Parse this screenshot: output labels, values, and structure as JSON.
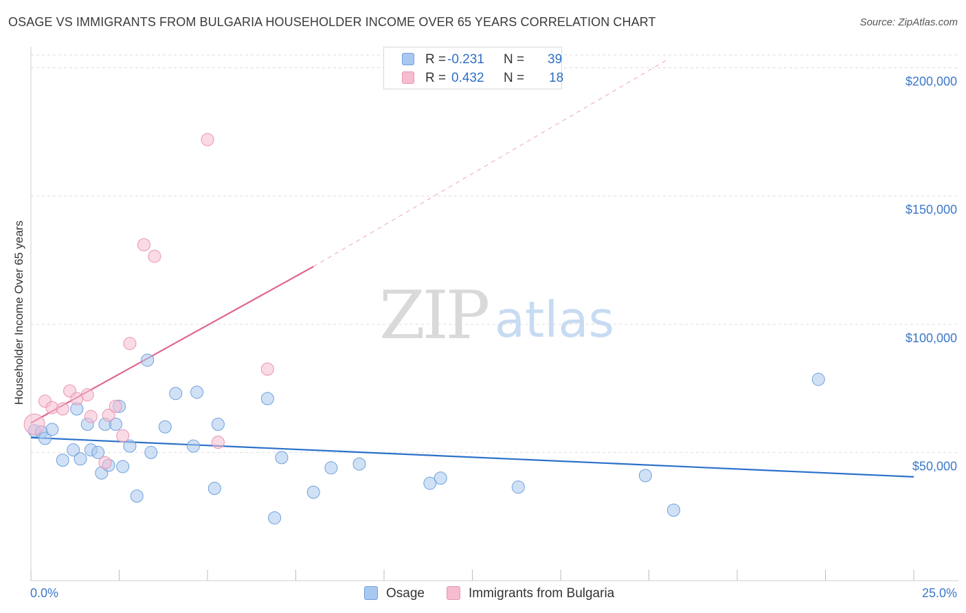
{
  "header": {
    "title": "OSAGE VS IMMIGRANTS FROM BULGARIA HOUSEHOLDER INCOME OVER 65 YEARS CORRELATION CHART",
    "source": "Source: ZipAtlas.com"
  },
  "watermark": {
    "zip": "ZIP",
    "atlas": "atlas"
  },
  "stats_legend": {
    "osage": {
      "r_label": "R =",
      "r_value": "-0.231",
      "n_label": "N =",
      "n_value": "39"
    },
    "bulgaria": {
      "r_label": "R =",
      "r_value": "0.432",
      "n_label": "N =",
      "n_value": "18"
    }
  },
  "colors": {
    "osage_fill": "#a9c8ef",
    "osage_stroke": "#6e9fdc",
    "osage_line": "#2a70c9",
    "bulgaria_fill": "#f6bcd0",
    "bulgaria_stroke": "#e894b2",
    "bulgaria_line": "#e0668f",
    "tick_text": "#3b78c9",
    "grid": "#dcdcdc"
  },
  "chart_data": {
    "type": "scatter",
    "title": "OSAGE VS IMMIGRANTS FROM BULGARIA HOUSEHOLDER INCOME OVER 65 YEARS CORRELATION CHART",
    "xlabel": "",
    "ylabel": "Householder Income Over 65 years",
    "xlim": [
      0,
      25
    ],
    "ylim": [
      0,
      205000
    ],
    "x_tick_labels": {
      "min": "0.0%",
      "max": "25.0%"
    },
    "y_ticks": [
      {
        "value": 50000,
        "label": "$50,000"
      },
      {
        "value": 100000,
        "label": "$100,000"
      },
      {
        "value": 150000,
        "label": "$150,000"
      },
      {
        "value": 200000,
        "label": "$200,000"
      }
    ],
    "grid": true,
    "legend_position": "bottom",
    "series": [
      {
        "name": "Osage",
        "key": "osage",
        "points": [
          [
            0.1,
            58500
          ],
          [
            0.3,
            58000
          ],
          [
            0.4,
            55500
          ],
          [
            0.6,
            59000
          ],
          [
            0.9,
            47000
          ],
          [
            1.2,
            51000
          ],
          [
            1.3,
            67000
          ],
          [
            1.4,
            47500
          ],
          [
            1.6,
            61000
          ],
          [
            1.7,
            51000
          ],
          [
            1.9,
            50000
          ],
          [
            2.0,
            42000
          ],
          [
            2.1,
            61000
          ],
          [
            2.2,
            45000
          ],
          [
            2.4,
            61000
          ],
          [
            2.5,
            68000
          ],
          [
            2.6,
            44500
          ],
          [
            2.8,
            52500
          ],
          [
            3.0,
            33000
          ],
          [
            3.3,
            86000
          ],
          [
            3.4,
            50000
          ],
          [
            3.8,
            60000
          ],
          [
            4.1,
            73000
          ],
          [
            4.6,
            52500
          ],
          [
            4.7,
            73500
          ],
          [
            5.2,
            36000
          ],
          [
            5.3,
            61000
          ],
          [
            6.7,
            71000
          ],
          [
            6.9,
            24500
          ],
          [
            7.1,
            48000
          ],
          [
            8.0,
            34500
          ],
          [
            8.5,
            44000
          ],
          [
            9.3,
            45500
          ],
          [
            11.3,
            38000
          ],
          [
            11.6,
            40000
          ],
          [
            13.8,
            36500
          ],
          [
            17.4,
            41000
          ],
          [
            18.2,
            27500
          ],
          [
            22.3,
            78500
          ]
        ]
      },
      {
        "name": "Immigrants from Bulgaria",
        "key": "bulgaria",
        "points": [
          [
            0.1,
            61000
          ],
          [
            0.4,
            70000
          ],
          [
            0.6,
            67500
          ],
          [
            0.9,
            67000
          ],
          [
            1.1,
            74000
          ],
          [
            1.3,
            71000
          ],
          [
            1.6,
            72500
          ],
          [
            1.7,
            64000
          ],
          [
            2.1,
            46000
          ],
          [
            2.2,
            64500
          ],
          [
            2.4,
            68000
          ],
          [
            2.6,
            56500
          ],
          [
            2.8,
            92500
          ],
          [
            3.2,
            131000
          ],
          [
            3.5,
            126500
          ],
          [
            5.0,
            172000
          ],
          [
            5.3,
            54000
          ],
          [
            6.7,
            82500
          ]
        ]
      }
    ],
    "trend_lines": [
      {
        "series": "Osage",
        "x": [
          0,
          25
        ],
        "y": [
          55800,
          40500
        ],
        "style": "solid"
      },
      {
        "series": "Immigrants from Bulgaria",
        "x": [
          0,
          8.0
        ],
        "y": [
          61500,
          122500
        ],
        "style": "solid"
      },
      {
        "series": "Immigrants from Bulgaria",
        "x": [
          8.0,
          18.0
        ],
        "y": [
          122500,
          203000
        ],
        "style": "dashed"
      }
    ]
  }
}
